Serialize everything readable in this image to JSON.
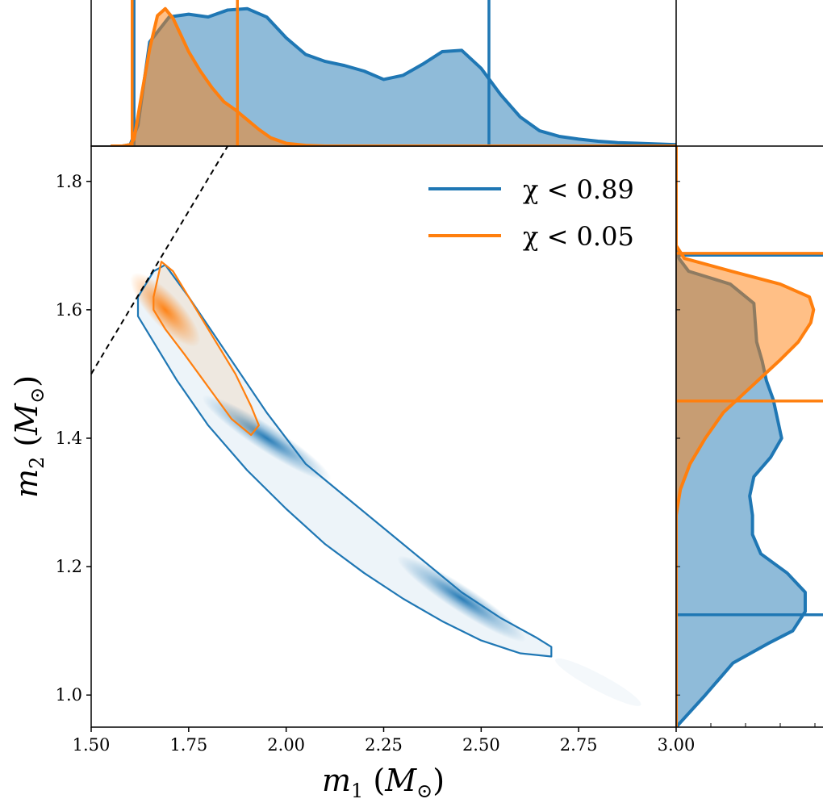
{
  "chart_data": {
    "type": "joint-density",
    "title": "",
    "xlabel": {
      "symbol": "m",
      "subscript": "1",
      "unit_open": " (",
      "unit_symbol": "M",
      "unit_subscript": "⊙",
      "unit_close": ")"
    },
    "ylabel": {
      "symbol": "m",
      "subscript": "2",
      "unit_open": " (",
      "unit_symbol": "M",
      "unit_subscript": "⊙",
      "unit_close": ")"
    },
    "xlim": [
      1.5,
      3.0
    ],
    "ylim": [
      0.95,
      1.855
    ],
    "x_ticks": [
      "1.50",
      "1.75",
      "2.00",
      "2.25",
      "2.50",
      "2.75",
      "3.00"
    ],
    "x_tick_values": [
      1.5,
      1.75,
      2.0,
      2.25,
      2.5,
      2.75,
      3.0
    ],
    "y_ticks": [
      "1.0",
      "1.2",
      "1.4",
      "1.6",
      "1.8"
    ],
    "y_tick_values": [
      1.0,
      1.2,
      1.4,
      1.6,
      1.8
    ],
    "grid": false,
    "legend_placement": "upper-right",
    "colors": {
      "blue": "#1f77b4",
      "orange": "#ff7f0e"
    },
    "series": [
      {
        "name": "χ < 0.89",
        "color": "#1f77b4",
        "density_peaks": [
          {
            "m1": 1.95,
            "m2": 1.4
          },
          {
            "m1": 2.45,
            "m2": 1.15
          }
        ],
        "contour": [
          [
            1.62,
            1.62
          ],
          [
            1.66,
            1.66
          ],
          [
            1.69,
            1.67
          ],
          [
            1.75,
            1.62
          ],
          [
            1.85,
            1.53
          ],
          [
            1.95,
            1.44
          ],
          [
            2.05,
            1.36
          ],
          [
            2.15,
            1.31
          ],
          [
            2.25,
            1.26
          ],
          [
            2.35,
            1.21
          ],
          [
            2.45,
            1.16
          ],
          [
            2.55,
            1.12
          ],
          [
            2.64,
            1.09
          ],
          [
            2.68,
            1.075
          ],
          [
            2.68,
            1.06
          ],
          [
            2.6,
            1.065
          ],
          [
            2.5,
            1.085
          ],
          [
            2.4,
            1.115
          ],
          [
            2.3,
            1.15
          ],
          [
            2.2,
            1.19
          ],
          [
            2.1,
            1.235
          ],
          [
            2.0,
            1.29
          ],
          [
            1.9,
            1.35
          ],
          [
            1.8,
            1.42
          ],
          [
            1.72,
            1.49
          ],
          [
            1.66,
            1.55
          ],
          [
            1.62,
            1.59
          ]
        ],
        "m1_marginal": {
          "x": [
            1.55,
            1.58,
            1.6,
            1.62,
            1.65,
            1.7,
            1.75,
            1.8,
            1.85,
            1.9,
            1.95,
            2.0,
            2.05,
            2.1,
            2.15,
            2.2,
            2.25,
            2.3,
            2.35,
            2.4,
            2.45,
            2.5,
            2.55,
            2.6,
            2.65,
            2.7,
            2.75,
            2.8,
            2.85,
            2.9,
            2.95,
            3.0
          ],
          "density": [
            0.0,
            0.0,
            0.01,
            0.15,
            0.75,
            0.93,
            0.95,
            0.93,
            0.98,
            0.99,
            0.93,
            0.78,
            0.66,
            0.61,
            0.58,
            0.54,
            0.48,
            0.51,
            0.59,
            0.68,
            0.69,
            0.56,
            0.37,
            0.21,
            0.11,
            0.07,
            0.05,
            0.035,
            0.025,
            0.02,
            0.015,
            0.01
          ]
        },
        "m2_marginal": {
          "y": [
            0.95,
            1.0,
            1.05,
            1.08,
            1.1,
            1.13,
            1.16,
            1.19,
            1.22,
            1.25,
            1.28,
            1.31,
            1.34,
            1.37,
            1.4,
            1.43,
            1.46,
            1.49,
            1.52,
            1.55,
            1.58,
            1.61,
            1.64,
            1.66,
            1.68,
            1.7,
            1.855
          ],
          "density": [
            0.0,
            0.21,
            0.41,
            0.66,
            0.84,
            0.93,
            0.93,
            0.8,
            0.61,
            0.55,
            0.55,
            0.53,
            0.56,
            0.68,
            0.76,
            0.73,
            0.7,
            0.65,
            0.62,
            0.58,
            0.57,
            0.56,
            0.39,
            0.09,
            0.02,
            0.0,
            0.0
          ]
        },
        "m1_interval": [
          1.61,
          2.52
        ],
        "m2_interval": [
          1.125,
          1.685
        ]
      },
      {
        "name": "χ < 0.05",
        "color": "#ff7f0e",
        "density_peaks": [
          {
            "m1": 1.69,
            "m2": 1.6
          }
        ],
        "contour": [
          [
            1.66,
            1.62
          ],
          [
            1.68,
            1.675
          ],
          [
            1.71,
            1.66
          ],
          [
            1.76,
            1.61
          ],
          [
            1.82,
            1.55
          ],
          [
            1.87,
            1.5
          ],
          [
            1.91,
            1.45
          ],
          [
            1.93,
            1.42
          ],
          [
            1.91,
            1.405
          ],
          [
            1.86,
            1.43
          ],
          [
            1.8,
            1.48
          ],
          [
            1.74,
            1.53
          ],
          [
            1.69,
            1.57
          ],
          [
            1.66,
            1.6
          ]
        ],
        "m1_marginal": {
          "x": [
            1.55,
            1.58,
            1.6,
            1.61,
            1.63,
            1.65,
            1.67,
            1.69,
            1.71,
            1.73,
            1.75,
            1.78,
            1.81,
            1.84,
            1.87,
            1.9,
            1.93,
            1.96,
            2.0,
            2.05,
            2.1,
            3.0
          ],
          "density": [
            0.0,
            0.0,
            0.01,
            0.05,
            0.38,
            0.7,
            0.94,
            0.99,
            0.92,
            0.8,
            0.68,
            0.54,
            0.42,
            0.32,
            0.26,
            0.19,
            0.12,
            0.06,
            0.02,
            0.005,
            0.0,
            0.0
          ]
        },
        "m2_marginal": {
          "y": [
            0.95,
            1.28,
            1.32,
            1.36,
            1.4,
            1.44,
            1.48,
            1.52,
            1.55,
            1.58,
            1.6,
            1.62,
            1.64,
            1.66,
            1.68,
            1.7,
            1.855
          ],
          "density": [
            0.0,
            0.0,
            0.03,
            0.1,
            0.21,
            0.34,
            0.54,
            0.74,
            0.88,
            0.97,
            0.99,
            0.96,
            0.75,
            0.4,
            0.06,
            0.0,
            0.0
          ]
        },
        "m1_interval": [
          1.605,
          1.875
        ],
        "m2_interval": [
          1.458,
          1.688
        ]
      }
    ],
    "reference_line": {
      "style": "dashed",
      "points": [
        [
          1.5,
          1.5
        ],
        [
          1.85,
          1.855
        ]
      ]
    }
  }
}
